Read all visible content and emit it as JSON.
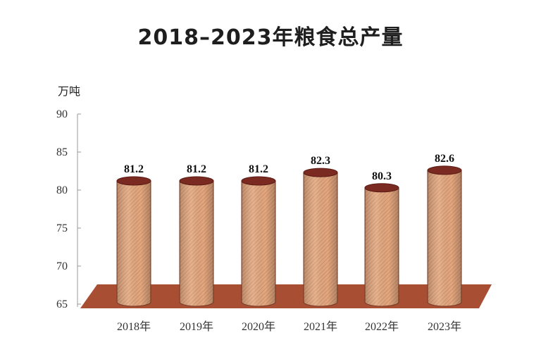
{
  "chart_data": {
    "type": "bar",
    "title": "2018–2023年粮食总产量",
    "ylabel": "万吨",
    "xlabel": "",
    "categories": [
      "2018年",
      "2019年",
      "2020年",
      "2021年",
      "2022年",
      "2023年"
    ],
    "values": [
      81.2,
      81.2,
      81.2,
      82.3,
      80.3,
      82.6
    ],
    "ylim": [
      65,
      90
    ],
    "yticks": [
      65,
      70,
      75,
      80,
      85,
      90
    ],
    "grid": false,
    "legend": "none",
    "style": "3d-cylinder"
  },
  "colors": {
    "bar_body": "#dfa07a",
    "bar_top": "#7b2a22",
    "floor": "#a84e33",
    "axis": "#999999"
  }
}
